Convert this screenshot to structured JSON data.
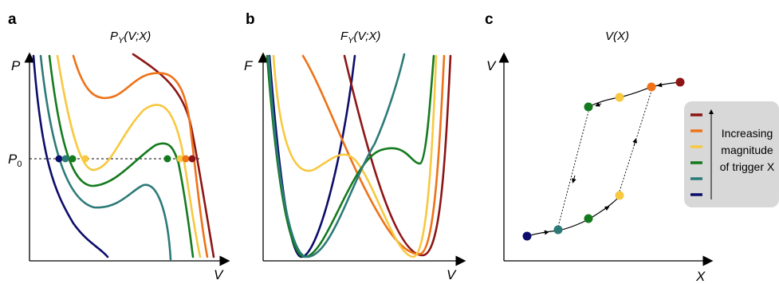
{
  "colors": {
    "darkred": "#8e1515",
    "orange": "#ee7218",
    "yellow": "#f7c840",
    "green": "#147a1e",
    "teal": "#2c7a78",
    "navy": "#0d0d6b"
  },
  "panel_a": {
    "label": "a",
    "title_main": "P",
    "title_sub": "Y",
    "title_args": "(V;X)",
    "y_axis_label": "P",
    "x_axis_label": "V",
    "ref_main": "P",
    "ref_sub": "0"
  },
  "panel_b": {
    "label": "b",
    "title_main": "F",
    "title_sub": "Y",
    "title_args": "(V;X)",
    "y_axis_label": "F",
    "x_axis_label": "V"
  },
  "panel_c": {
    "label": "c",
    "title": "V(X)",
    "y_axis_label": "V",
    "x_axis_label": "X"
  },
  "legend": {
    "lines": [
      "Increasing",
      "magnitude",
      "of trigger X"
    ],
    "swatches": [
      "darkred",
      "orange",
      "yellow",
      "green",
      "teal",
      "navy"
    ]
  }
}
